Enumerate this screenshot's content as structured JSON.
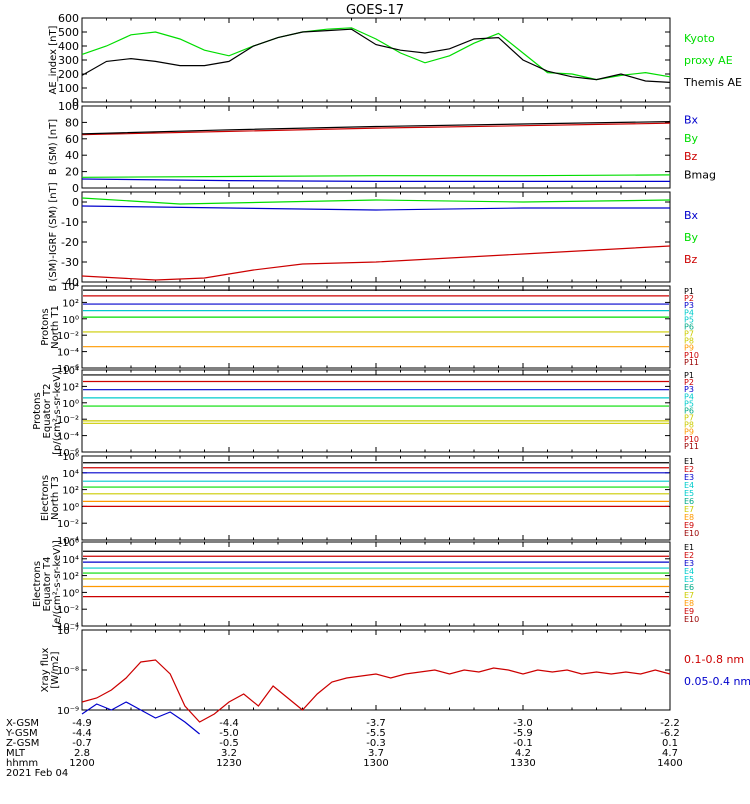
{
  "title": "GOES-17",
  "colors": {
    "axis": "#000000",
    "black": "#000000",
    "green": "#00dd00",
    "blue": "#0000cc",
    "red": "#cc0000",
    "cyan": "#00cccc",
    "teal": "#00aa88",
    "yellow": "#cccc00",
    "orange": "#ff9900",
    "darkred": "#990000"
  },
  "chart_data": [
    {
      "id": "ae",
      "type": "line",
      "ylabel": "AE_index [nT]",
      "ylim": [
        0,
        600
      ],
      "yticks": [
        "0",
        "100",
        "200",
        "300",
        "400",
        "500",
        "600"
      ],
      "series": [
        {
          "name": "Kyoto proxy AE",
          "color": "green",
          "x": [
            0,
            5,
            10,
            15,
            20,
            25,
            30,
            35,
            40,
            45,
            50,
            55,
            60,
            65,
            70,
            75,
            80,
            85,
            90,
            95,
            100,
            105,
            110,
            115,
            120
          ],
          "y": [
            340,
            400,
            480,
            500,
            450,
            370,
            330,
            400,
            460,
            500,
            520,
            530,
            450,
            350,
            280,
            330,
            420,
            490,
            350,
            210,
            200,
            160,
            190,
            210,
            180
          ]
        },
        {
          "name": "Themis AE",
          "color": "black",
          "x": [
            0,
            5,
            10,
            15,
            20,
            25,
            30,
            35,
            40,
            45,
            50,
            55,
            60,
            65,
            70,
            75,
            80,
            85,
            90,
            95,
            100,
            105,
            110,
            115,
            120
          ],
          "y": [
            190,
            290,
            310,
            290,
            260,
            260,
            290,
            400,
            460,
            500,
            510,
            520,
            410,
            370,
            350,
            380,
            450,
            460,
            300,
            220,
            180,
            160,
            200,
            150,
            140
          ]
        }
      ],
      "legend": [
        {
          "text": "Kyoto",
          "color": "green"
        },
        {
          "text": "proxy AE",
          "color": "green"
        },
        {
          "text": "Themis AE",
          "color": "black"
        }
      ]
    },
    {
      "id": "bsm",
      "type": "line",
      "ylabel": "B (SM) [nT]",
      "ylim": [
        0,
        100
      ],
      "yticks": [
        "0",
        "20",
        "40",
        "60",
        "80",
        "100"
      ],
      "series": [
        {
          "name": "Bx",
          "color": "blue",
          "x": [
            0,
            30,
            60,
            90,
            120
          ],
          "y": [
            11,
            9,
            8,
            8,
            8
          ]
        },
        {
          "name": "By",
          "color": "green",
          "x": [
            0,
            30,
            60,
            90,
            120
          ],
          "y": [
            13,
            14,
            15,
            15,
            16
          ]
        },
        {
          "name": "Bz",
          "color": "red",
          "x": [
            0,
            30,
            60,
            90,
            120
          ],
          "y": [
            65,
            69,
            73,
            76,
            79
          ]
        },
        {
          "name": "Bmag",
          "color": "black",
          "x": [
            0,
            30,
            60,
            90,
            120
          ],
          "y": [
            66,
            71,
            75,
            78,
            81
          ]
        }
      ],
      "legend": [
        {
          "text": "Bx",
          "color": "blue"
        },
        {
          "text": "By",
          "color": "green"
        },
        {
          "text": "Bz",
          "color": "red"
        },
        {
          "text": "Bmag",
          "color": "black"
        }
      ]
    },
    {
      "id": "bdiff",
      "type": "line",
      "ylabel": "B (SM)-IGRF (SM) [nT]",
      "ylim": [
        -40,
        5
      ],
      "yticks": [
        "-40",
        "-30",
        "-20",
        "-10",
        "0"
      ],
      "series": [
        {
          "name": "Bx",
          "color": "blue",
          "x": [
            0,
            30,
            60,
            90,
            120
          ],
          "y": [
            -2,
            -3,
            -4,
            -3,
            -3
          ]
        },
        {
          "name": "By",
          "color": "green",
          "x": [
            0,
            20,
            40,
            60,
            90,
            120
          ],
          "y": [
            2,
            -1,
            0,
            1,
            0,
            1
          ]
        },
        {
          "name": "Bz",
          "color": "red",
          "x": [
            0,
            15,
            25,
            35,
            45,
            60,
            75,
            90,
            105,
            120
          ],
          "y": [
            -37,
            -39,
            -38,
            -34,
            -31,
            -30,
            -28,
            -26,
            -24,
            -22
          ]
        }
      ],
      "legend": [
        {
          "text": "Bx",
          "color": "blue"
        },
        {
          "text": "By",
          "color": "green"
        },
        {
          "text": "Bz",
          "color": "red"
        }
      ]
    },
    {
      "id": "pn",
      "type": "line",
      "ylog": true,
      "ylabel1": "Protons",
      "ylabel2": "North T1",
      "ylim": [
        -6,
        4
      ],
      "yticks": [
        {
          "e": 4,
          "t": "10⁴"
        },
        {
          "e": 2,
          "t": "10²"
        },
        {
          "e": 0,
          "t": "10⁰"
        },
        {
          "e": -2,
          "t": "10⁻²"
        },
        {
          "e": -4,
          "t": "10⁻⁴"
        },
        {
          "e": -6,
          "t": "10⁻⁶"
        }
      ],
      "levels": [
        {
          "color": "black",
          "y": 3.5
        },
        {
          "color": "red",
          "y": 2.8
        },
        {
          "color": "blue",
          "y": 1.8
        },
        {
          "color": "cyan",
          "y": 1.0
        },
        {
          "color": "green",
          "y": 0.2
        },
        {
          "color": "yellow",
          "y": -1.6
        },
        {
          "color": "orange",
          "y": -3.4
        }
      ],
      "legend": [
        {
          "text": "P1",
          "color": "black"
        },
        {
          "text": "P2",
          "color": "red"
        },
        {
          "text": "P3",
          "color": "blue"
        },
        {
          "text": "P4",
          "color": "cyan"
        },
        {
          "text": "P5",
          "color": "cyan"
        },
        {
          "text": "P6",
          "color": "teal"
        },
        {
          "text": "P7",
          "color": "yellow"
        },
        {
          "text": "P8",
          "color": "yellow"
        },
        {
          "text": "P9",
          "color": "orange"
        },
        {
          "text": "P10",
          "color": "red"
        },
        {
          "text": "P11",
          "color": "darkred"
        }
      ]
    },
    {
      "id": "pe",
      "type": "line",
      "ylog": true,
      "ylabel1": "Protons",
      "ylabel2": "Equator T2",
      "ylabel3": "[p/(cm²-s-sr-keV)]",
      "ylim": [
        -6,
        4
      ],
      "yticks": [
        {
          "e": 4,
          "t": "10⁴"
        },
        {
          "e": 2,
          "t": "10²"
        },
        {
          "e": 0,
          "t": "10⁰"
        },
        {
          "e": -2,
          "t": "10⁻²"
        },
        {
          "e": -4,
          "t": "10⁻⁴"
        },
        {
          "e": -6,
          "t": "10⁻⁶"
        }
      ],
      "levels": [
        {
          "color": "black",
          "y": 3.4
        },
        {
          "color": "red",
          "y": 2.6
        },
        {
          "color": "blue",
          "y": 1.6
        },
        {
          "color": "cyan",
          "y": 0.6
        },
        {
          "color": "green",
          "y": -0.4
        },
        {
          "color": "yellow",
          "y": -2.2
        },
        {
          "color": "yellow",
          "y": -2.5
        }
      ],
      "legend": [
        {
          "text": "P1",
          "color": "black"
        },
        {
          "text": "P2",
          "color": "red"
        },
        {
          "text": "P3",
          "color": "blue"
        },
        {
          "text": "P4",
          "color": "cyan"
        },
        {
          "text": "P5",
          "color": "cyan"
        },
        {
          "text": "P6",
          "color": "teal"
        },
        {
          "text": "P7",
          "color": "yellow"
        },
        {
          "text": "P8",
          "color": "yellow"
        },
        {
          "text": "P9",
          "color": "orange"
        },
        {
          "text": "P10",
          "color": "red"
        },
        {
          "text": "P11",
          "color": "darkred"
        }
      ]
    },
    {
      "id": "en",
      "type": "line",
      "ylog": true,
      "ylabel1": "Electrons",
      "ylabel2": "North T3",
      "ylim": [
        -4,
        6
      ],
      "yticks": [
        {
          "e": 6,
          "t": "10⁶"
        },
        {
          "e": 4,
          "t": "10⁴"
        },
        {
          "e": 2,
          "t": "10²"
        },
        {
          "e": 0,
          "t": "10⁰"
        },
        {
          "e": -2,
          "t": "10⁻²"
        },
        {
          "e": -4,
          "t": "10⁻⁴"
        }
      ],
      "levels": [
        {
          "color": "black",
          "y": 5.2
        },
        {
          "color": "red",
          "y": 4.6
        },
        {
          "color": "blue",
          "y": 4.0
        },
        {
          "color": "cyan",
          "y": 3.0
        },
        {
          "color": "green",
          "y": 2.3
        },
        {
          "color": "yellow",
          "y": 1.5
        },
        {
          "color": "orange",
          "y": 0.6
        },
        {
          "color": "red",
          "y": 0.0
        }
      ],
      "legend": [
        {
          "text": "E1",
          "color": "black"
        },
        {
          "text": "E2",
          "color": "red"
        },
        {
          "text": "E3",
          "color": "blue"
        },
        {
          "text": "E4",
          "color": "cyan"
        },
        {
          "text": "E5",
          "color": "cyan"
        },
        {
          "text": "E6",
          "color": "teal"
        },
        {
          "text": "E7",
          "color": "yellow"
        },
        {
          "text": "E8",
          "color": "orange"
        },
        {
          "text": "E9",
          "color": "red"
        },
        {
          "text": "E10",
          "color": "darkred"
        }
      ]
    },
    {
      "id": "ee",
      "type": "line",
      "ylog": true,
      "ylabel1": "Electrons",
      "ylabel2": "Equator T4",
      "ylabel3": "[e/(cm²-s-sr-keV)]",
      "ylim": [
        -4,
        6
      ],
      "yticks": [
        {
          "e": 6,
          "t": "10⁶"
        },
        {
          "e": 4,
          "t": "10⁴"
        },
        {
          "e": 2,
          "t": "10²"
        },
        {
          "e": 0,
          "t": "10⁰"
        },
        {
          "e": -2,
          "t": "10⁻²"
        },
        {
          "e": -4,
          "t": "10⁻⁴"
        }
      ],
      "levels": [
        {
          "color": "black",
          "y": 4.9
        },
        {
          "color": "red",
          "y": 4.3
        },
        {
          "color": "blue",
          "y": 3.6
        },
        {
          "color": "cyan",
          "y": 2.9
        },
        {
          "color": "green",
          "y": 2.3
        },
        {
          "color": "yellow",
          "y": 1.6
        },
        {
          "color": "orange",
          "y": 0.7
        },
        {
          "color": "red",
          "y": -0.5
        }
      ],
      "legend": [
        {
          "text": "E1",
          "color": "black"
        },
        {
          "text": "E2",
          "color": "red"
        },
        {
          "text": "E3",
          "color": "blue"
        },
        {
          "text": "E4",
          "color": "cyan"
        },
        {
          "text": "E5",
          "color": "cyan"
        },
        {
          "text": "E6",
          "color": "teal"
        },
        {
          "text": "E7",
          "color": "yellow"
        },
        {
          "text": "E8",
          "color": "orange"
        },
        {
          "text": "E9",
          "color": "red"
        },
        {
          "text": "E10",
          "color": "darkred"
        }
      ]
    },
    {
      "id": "xray",
      "type": "line",
      "ylog": true,
      "ylabel1": "Xray flux",
      "ylabel2": "[W/m2]",
      "ylim": [
        -9,
        -7
      ],
      "yticks": [
        {
          "e": -7,
          "t": "10⁻⁷"
        },
        {
          "e": -8,
          "t": "10⁻⁸"
        },
        {
          "e": -9,
          "t": "10⁻⁹"
        }
      ],
      "series": [
        {
          "name": "0.1-0.8 nm",
          "color": "red",
          "x": [
            0,
            3,
            6,
            9,
            12,
            15,
            18,
            21,
            24,
            27,
            30,
            33,
            36,
            39,
            42,
            45,
            48,
            51,
            54,
            57,
            60,
            63,
            66,
            69,
            72,
            75,
            78,
            81,
            84,
            87,
            90,
            93,
            96,
            99,
            102,
            105,
            108,
            111,
            114,
            117,
            120
          ],
          "y": [
            -8.8,
            -8.7,
            -8.5,
            -8.2,
            -7.8,
            -7.75,
            -8.1,
            -8.9,
            -9.3,
            -9.1,
            -8.8,
            -8.6,
            -8.9,
            -8.4,
            -8.7,
            -9.0,
            -8.6,
            -8.3,
            -8.2,
            -8.15,
            -8.1,
            -8.2,
            -8.1,
            -8.05,
            -8.0,
            -8.1,
            -8.0,
            -8.05,
            -7.95,
            -8.0,
            -8.1,
            -8.0,
            -8.05,
            -8.0,
            -8.1,
            -8.05,
            -8.1,
            -8.05,
            -8.1,
            -8.0,
            -8.1
          ]
        },
        {
          "name": "0.05-0.4 nm",
          "color": "blue",
          "x": [
            0,
            3,
            6,
            9,
            12,
            15,
            18,
            21,
            24
          ],
          "y": [
            -9.1,
            -8.85,
            -9.0,
            -8.8,
            -9.0,
            -9.2,
            -9.05,
            -9.3,
            -9.6
          ]
        }
      ],
      "legend": [
        {
          "text": "0.1-0.8 nm",
          "color": "red"
        },
        {
          "text": "0.05-0.4 nm",
          "color": "blue"
        }
      ]
    }
  ],
  "xaxis": {
    "range": [
      0,
      120
    ],
    "ticks": [
      0,
      30,
      60,
      90,
      120
    ],
    "rows": [
      {
        "label": "X-GSM",
        "vals": [
          "-4.9",
          "-4.4",
          "-3.7",
          "-3.0",
          "-2.2"
        ]
      },
      {
        "label": "Y-GSM",
        "vals": [
          "-4.4",
          "-5.0",
          "-5.5",
          "-5.9",
          "-6.2"
        ]
      },
      {
        "label": "Z-GSM",
        "vals": [
          "-0.7",
          "-0.5",
          "-0.3",
          "-0.1",
          "0.1"
        ]
      },
      {
        "label": "MLT",
        "vals": [
          "2.8",
          "3.2",
          "3.7",
          "4.2",
          "4.7"
        ]
      },
      {
        "label": "hhmm",
        "vals": [
          "1200",
          "1230",
          "1300",
          "1330",
          "1400"
        ]
      }
    ],
    "date": "2021 Feb 04"
  }
}
